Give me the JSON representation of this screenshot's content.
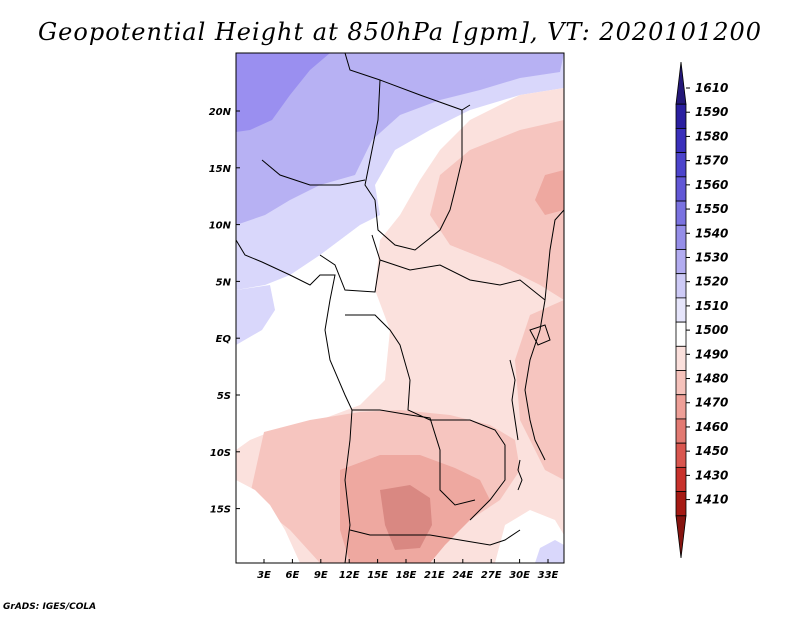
{
  "title": "Geopotential Height at 850hPa [gpm], VT: 2020101200",
  "credit": "GrADS: IGES/COLA",
  "map": {
    "lon_ticks": [
      "3E",
      "6E",
      "9E",
      "12E",
      "15E",
      "18E",
      "21E",
      "24E",
      "27E",
      "30E",
      "33E"
    ],
    "lat_ticks": [
      "20N",
      "15N",
      "10N",
      "5N",
      "EQ",
      "5S",
      "10S",
      "15S"
    ],
    "extent": {
      "lon": [
        0,
        35
      ],
      "lat": [
        -19,
        24
      ]
    }
  },
  "colorbar": {
    "levels": [
      "1610",
      "1590",
      "1580",
      "1570",
      "1560",
      "1550",
      "1540",
      "1530",
      "1520",
      "1510",
      "1500",
      "1490",
      "1480",
      "1470",
      "1460",
      "1450",
      "1430",
      "1410"
    ],
    "colors": [
      "#241878",
      "#2a1fa0",
      "#3a30bb",
      "#4c44cc",
      "#6258d6",
      "#7a72e0",
      "#958ee8",
      "#b2acf0",
      "#cdcaf6",
      "#e6e5fb",
      "#ffffff",
      "#fbe0dc",
      "#f5c2bb",
      "#ee9f97",
      "#e27a72",
      "#d9564f",
      "#c8322c",
      "#a61a14",
      "#861410"
    ]
  },
  "colors": {
    "purple_strong": "#9a8ff0",
    "purple_mid": "#b7b1f3",
    "purple_light": "#d9d7fb",
    "white": "#ffffff",
    "pink_light": "#fbe1dd",
    "pink_mid": "#f6c5bf",
    "pink_strong": "#eea8a0",
    "red_core": "#d98882"
  }
}
